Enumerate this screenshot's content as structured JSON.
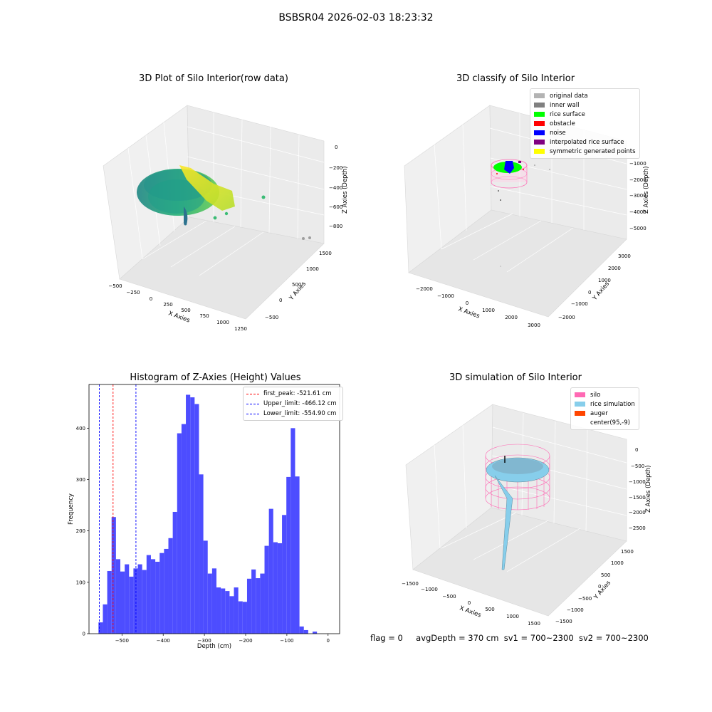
{
  "figure": {
    "suptitle": "BSBSR04 2026-02-03 18:23:32",
    "status": {
      "flag": "flag = 0",
      "avg_depth": "avgDepth = 370 cm",
      "sv1": "sv1 = 700~2300",
      "sv2": "sv2 = 700~2300"
    }
  },
  "colors": {
    "histogram_bar": "#4d4dff",
    "first_peak_line": "#ff0000",
    "limit_lines": "#0000ff",
    "silo_wire": "#ff69b4",
    "rice_surface": "#87ceeb"
  },
  "chart_data": [
    {
      "type": "scatter",
      "projection": "3d",
      "title": "3D Plot of Silo Interior(row data)",
      "xlabel": "X Axies",
      "ylabel": "Y Axies",
      "zlabel": "Z Axies (Depth)",
      "xticks": [
        "−500",
        "−250",
        "0",
        "250",
        "500",
        "750",
        "1000",
        "1250"
      ],
      "yticks": [
        "−500",
        "0",
        "500",
        "1000",
        "1500"
      ],
      "zticks": [
        "0",
        "−200",
        "−400",
        "−600",
        "−800"
      ],
      "colormap": "viridis"
    },
    {
      "type": "scatter",
      "projection": "3d",
      "title": "3D classify of Silo Interior",
      "xlabel": "X Axies",
      "ylabel": "Y Axies",
      "zlabel": "Z Axies (Depth)",
      "xticks": [
        "−2000",
        "−1000",
        "0",
        "1000",
        "2000",
        "3000"
      ],
      "yticks": [
        "−2000",
        "−1000",
        "0",
        "1000",
        "2000",
        "3000"
      ],
      "zticks": [
        "−1000",
        "−2000",
        "−3000",
        "−4000",
        "−5000"
      ],
      "legend_position": "top-right",
      "legend": [
        {
          "label": "original data",
          "color": "#b3b3b3"
        },
        {
          "label": "inner wall",
          "color": "#808080"
        },
        {
          "label": "rice surface",
          "color": "#00ff00"
        },
        {
          "label": "obstacle",
          "color": "#ff0000"
        },
        {
          "label": "noise",
          "color": "#0000ff"
        },
        {
          "label": "interpolated rice surface",
          "color": "#800080"
        },
        {
          "label": "symmetric generated points",
          "color": "#ffff00"
        }
      ]
    },
    {
      "type": "bar",
      "title": "Histogram of Z-Axies (Height) Values",
      "xlabel": "Depth (cm)",
      "ylabel": "Frequency",
      "xlim": [
        -580,
        28
      ],
      "ylim": [
        0,
        485
      ],
      "xticks": [
        {
          "value": -500,
          "label": "−500"
        },
        {
          "value": -400,
          "label": "−400"
        },
        {
          "value": -300,
          "label": "−300"
        },
        {
          "value": -200,
          "label": "−200"
        },
        {
          "value": -100,
          "label": "−100"
        },
        {
          "value": 0,
          "label": "0"
        }
      ],
      "yticks": [
        {
          "value": 0,
          "label": "0"
        },
        {
          "value": 100,
          "label": "100"
        },
        {
          "value": 200,
          "label": "200"
        },
        {
          "value": 300,
          "label": "300"
        },
        {
          "value": 400,
          "label": "400"
        }
      ],
      "bin_start": -557,
      "bin_width": 10.6,
      "values": [
        22,
        57,
        122,
        227,
        145,
        121,
        135,
        111,
        127,
        135,
        124,
        153,
        145,
        140,
        157,
        165,
        186,
        237,
        390,
        408,
        465,
        460,
        447,
        310,
        181,
        117,
        127,
        90,
        88,
        83,
        73,
        90,
        63,
        62,
        107,
        125,
        108,
        117,
        171,
        243,
        178,
        176,
        231,
        305,
        400,
        306,
        14,
        7,
        0,
        4
      ],
      "vlines": [
        {
          "label": "first_peak: -521.61 cm",
          "x": -521.61,
          "color": "#ff0000"
        },
        {
          "label": "Upper_limit: -466.12 cm",
          "x": -466.12,
          "color": "#0000ff"
        },
        {
          "label": "Lower_limit: -554.90 cm",
          "x": -554.9,
          "color": "#0000ff"
        }
      ],
      "legend_position": "top-right"
    },
    {
      "type": "surface",
      "projection": "3d",
      "title": "3D simulation of Silo Interior",
      "xlabel": "X Axies",
      "ylabel": "Y Axies",
      "zlabel": "Z Axies (Depth)",
      "xticks": [
        "−1500",
        "−1000",
        "−500",
        "0",
        "500",
        "1000",
        "1500"
      ],
      "yticks": [
        "−1500",
        "−1000",
        "−500",
        "0",
        "500",
        "1000",
        "1500"
      ],
      "zticks": [
        "0",
        "−500",
        "−1000",
        "−1500",
        "−2000",
        "−2500"
      ],
      "legend_position": "top-right",
      "legend": [
        {
          "label": "silo",
          "color": "#ff69b4"
        },
        {
          "label": "rice simulation",
          "color": "#87ceeb"
        },
        {
          "label": "auger",
          "color": "#ff4500"
        },
        {
          "label": "center(95,-9)",
          "color": ""
        }
      ]
    }
  ]
}
